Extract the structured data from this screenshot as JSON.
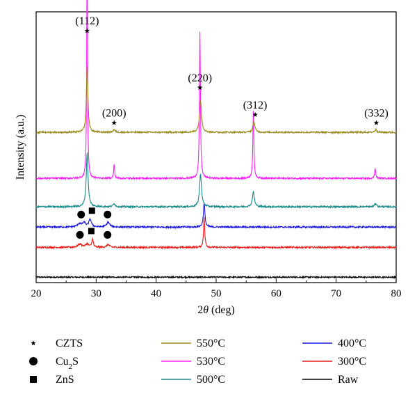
{
  "chart_data": {
    "type": "line",
    "xlabel": "2θ (deg)",
    "xlabel_prefix": "2",
    "xlabel_var": "θ",
    "xlabel_unit": " (deg)",
    "ylabel": "Intensity (a.u.)",
    "xlim": [
      20,
      80
    ],
    "x_ticks": [
      20,
      30,
      40,
      50,
      60,
      70,
      80
    ],
    "y_ticks_labeled": false,
    "grid": false,
    "legend_position": "bottom",
    "series": [
      {
        "name": "Raw",
        "color": "#000000",
        "baseline": 0.02,
        "noise": 0.0025,
        "peaks": []
      },
      {
        "name": "300°C",
        "color": "#e8201a",
        "baseline": 0.13,
        "noise": 0.003,
        "peaks": [
          [
            27.3,
            0.012,
            0.4
          ],
          [
            28.5,
            0.012,
            0.3
          ],
          [
            29.4,
            0.03,
            0.15
          ],
          [
            32.0,
            0.01,
            0.3
          ],
          [
            48.0,
            0.11,
            0.12
          ]
        ]
      },
      {
        "name": "400°C",
        "color": "#1c1ae0",
        "baseline": 0.205,
        "noise": 0.003,
        "peaks": [
          [
            27.2,
            0.012,
            0.4
          ],
          [
            28.0,
            0.015,
            0.3
          ],
          [
            29.0,
            0.028,
            0.25
          ],
          [
            32.0,
            0.018,
            0.3
          ],
          [
            48.0,
            0.09,
            0.15
          ]
        ]
      },
      {
        "name": "500°C",
        "color": "#1a8a8a",
        "baseline": 0.28,
        "noise": 0.003,
        "peaks": [
          [
            28.5,
            0.2,
            0.18
          ],
          [
            33.0,
            0.012,
            0.2
          ],
          [
            47.4,
            0.12,
            0.2
          ],
          [
            56.2,
            0.055,
            0.2
          ],
          [
            76.6,
            0.012,
            0.2
          ]
        ]
      },
      {
        "name": "530°C",
        "color": "#ff22ff",
        "baseline": 0.385,
        "noise": 0.003,
        "peaks": [
          [
            28.5,
            0.89,
            0.08
          ],
          [
            33.0,
            0.05,
            0.1
          ],
          [
            47.3,
            0.54,
            0.1
          ],
          [
            56.2,
            0.25,
            0.1
          ],
          [
            76.5,
            0.04,
            0.1
          ]
        ]
      },
      {
        "name": "550°C",
        "color": "#9a8c22",
        "baseline": 0.555,
        "noise": 0.003,
        "peaks": [
          [
            28.5,
            0.25,
            0.15
          ],
          [
            33.0,
            0.01,
            0.2
          ],
          [
            47.4,
            0.12,
            0.2
          ],
          [
            56.3,
            0.04,
            0.2
          ],
          [
            76.6,
            0.01,
            0.2
          ]
        ]
      }
    ],
    "peak_annotations": [
      {
        "label": "(112)",
        "x": 28.5,
        "y": 0.93
      },
      {
        "label": "(200)",
        "x": 33.0,
        "y": 0.59
      },
      {
        "label": "(220)",
        "x": 47.3,
        "y": 0.72
      },
      {
        "label": "(312)",
        "x": 56.5,
        "y": 0.62
      },
      {
        "label": "(332)",
        "x": 76.7,
        "y": 0.59
      }
    ],
    "phase_markers": [
      {
        "series": "400°C",
        "markers": [
          [
            "circle",
            27.5
          ],
          [
            "square",
            29.3
          ],
          [
            "circle",
            31.9
          ]
        ]
      },
      {
        "series": "300°C",
        "markers": [
          [
            "circle",
            27.3
          ],
          [
            "square",
            29.2
          ],
          [
            "circle",
            31.9
          ]
        ]
      }
    ],
    "legend": {
      "markers": [
        {
          "symbol": "star",
          "label": "CZTS"
        },
        {
          "symbol": "circle",
          "label_main": "Cu",
          "label_sub": "2",
          "label_end": "S",
          "label": "Cu2S"
        },
        {
          "symbol": "square",
          "label": "ZnS"
        }
      ],
      "lines": [
        {
          "label": "550°C",
          "color": "#9a8c22"
        },
        {
          "label": "530°C",
          "color": "#ff22ff"
        },
        {
          "label": "500°C",
          "color": "#1a8a8a"
        },
        {
          "label": "400°C",
          "color": "#1c1ae0"
        },
        {
          "label": "300°C",
          "color": "#e8201a"
        },
        {
          "label": "Raw",
          "color": "#000000"
        }
      ]
    }
  }
}
